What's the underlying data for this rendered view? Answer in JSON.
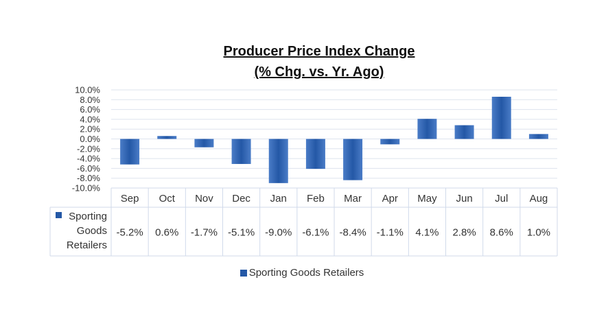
{
  "title_line1": "Producer Price Index Change",
  "title_line2": "(% Chg. vs. Yr. Ago)",
  "series_label_table": [
    "Sporting",
    "Goods",
    "Retailers"
  ],
  "legend_label": "Sporting Goods Retailers",
  "colors": {
    "bar_top": "#4a7cc7",
    "bar_bottom": "#2458a6",
    "grid": "#dde3ee",
    "table_border": "#d0daea"
  },
  "chart_data": {
    "type": "bar",
    "categories": [
      "Sep",
      "Oct",
      "Nov",
      "Dec",
      "Jan",
      "Feb",
      "Mar",
      "Apr",
      "May",
      "Jun",
      "Jul",
      "Aug"
    ],
    "series": [
      {
        "name": "Sporting Goods Retailers",
        "values": [
          -5.2,
          0.6,
          -1.7,
          -5.1,
          -9.0,
          -6.1,
          -8.4,
          -1.1,
          4.1,
          2.8,
          8.6,
          1.0
        ],
        "labels": [
          "-5.2%",
          "0.6%",
          "-1.7%",
          "-5.1%",
          "-9.0%",
          "-6.1%",
          "-8.4%",
          "-1.1%",
          "4.1%",
          "2.8%",
          "8.6%",
          "1.0%"
        ]
      }
    ],
    "title": "Producer Price Index Change (% Chg. vs. Yr. Ago)",
    "ylim": [
      -10,
      10
    ],
    "yticks": [
      10,
      8,
      6,
      4,
      2,
      0,
      -2,
      -4,
      -6,
      -8,
      -10
    ],
    "ytick_labels": [
      "10.0%",
      "8.0%",
      "6.0%",
      "4.0%",
      "2.0%",
      "0.0%",
      "-2.0%",
      "-4.0%",
      "-6.0%",
      "-8.0%",
      "-10.0%"
    ],
    "grid": true,
    "data_table": true,
    "legend": "bottom"
  }
}
